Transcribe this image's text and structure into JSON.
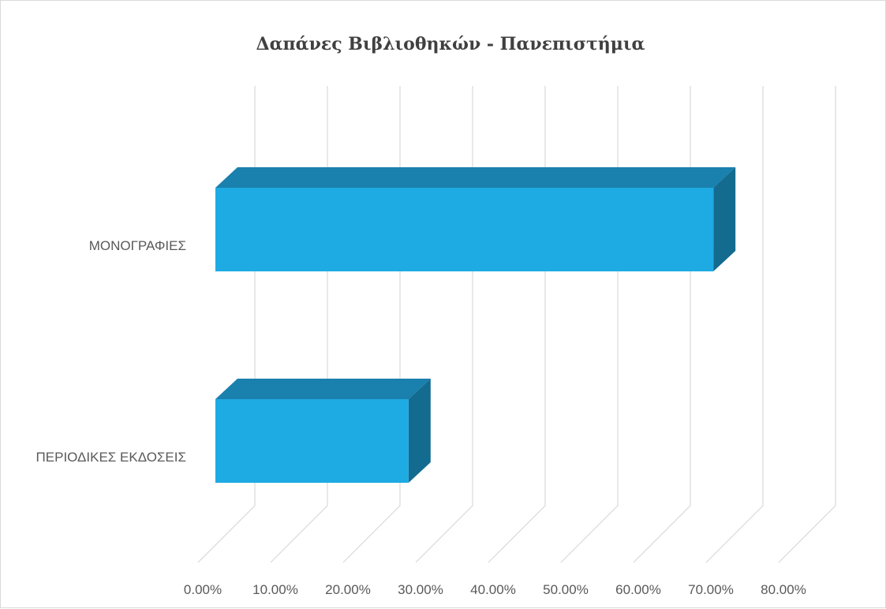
{
  "chart_data": {
    "type": "bar",
    "orientation": "horizontal",
    "style": "3d",
    "title": "Δαπάνες Βιβλιοθηκών - Πανεπιστήμια",
    "categories": [
      "ΜΟΝΟΓΡΑΦΙΕΣ",
      "ΠΕΡΙΟΔΙΚΕΣ ΕΚΔΟΣΕΙΣ"
    ],
    "values": [
      71.0,
      29.0
    ],
    "xlim": [
      0,
      80
    ],
    "xticks": [
      "0.00%",
      "10.00%",
      "20.00%",
      "30.00%",
      "40.00%",
      "50.00%",
      "60.00%",
      "70.00%",
      "80.00%"
    ],
    "grid": true,
    "legend": "none",
    "colors": {
      "front": "#1eaae3",
      "top": "#1a80ad",
      "side": "#136b8f",
      "grid": "#d9d9d9"
    }
  }
}
